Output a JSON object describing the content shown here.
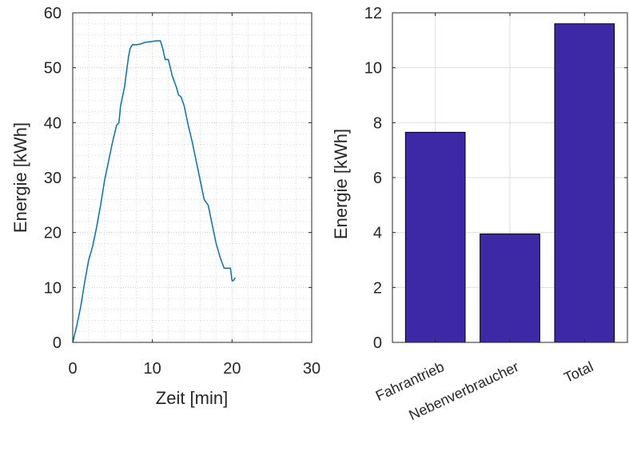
{
  "chart_data": [
    {
      "type": "line",
      "title": "",
      "xlabel": "Zeit [min]",
      "ylabel": "Energie [kWh]",
      "xlim": [
        0,
        30
      ],
      "ylim": [
        0,
        60
      ],
      "xticks": [
        "0",
        "10",
        "20",
        "30"
      ],
      "yticks": [
        "0",
        "10",
        "20",
        "30",
        "40",
        "50",
        "60"
      ],
      "grid": "major and minor (dotted)",
      "line_color": "#0072BD",
      "series": [
        {
          "x": [
            0,
            0.5,
            1.0,
            1.5,
            2.0,
            2.5,
            3.0,
            3.5,
            4.0,
            4.5,
            5.0,
            5.5,
            5.8,
            6.0,
            6.5,
            7.0,
            7.2,
            7.5,
            8.0,
            8.5,
            9.0,
            9.5,
            10.0,
            10.5,
            11.0,
            11.3,
            11.6,
            12.0,
            12.5,
            13.0,
            13.3,
            13.6,
            14.0,
            14.5,
            15.0,
            15.5,
            16.0,
            16.5,
            17.0,
            17.5,
            18.0,
            18.5,
            19.0,
            19.5,
            19.8,
            20.0,
            20.2,
            20.4
          ],
          "y": [
            0,
            3,
            6.5,
            11,
            15,
            17.5,
            21,
            25,
            29.5,
            33,
            36.5,
            39.5,
            40.0,
            43,
            46.5,
            52,
            53.5,
            54.2,
            54.2,
            54.3,
            54.6,
            54.7,
            54.8,
            54.9,
            54.9,
            53.5,
            51.5,
            51.5,
            48.5,
            46.5,
            45.0,
            44.7,
            43.0,
            39.5,
            36.5,
            33.0,
            29.5,
            26.0,
            25.0,
            21.5,
            18.0,
            15.5,
            13.5,
            13.5,
            13.5,
            11.2,
            11.3,
            11.8
          ]
        }
      ]
    },
    {
      "type": "bar",
      "title": "",
      "xlabel": "",
      "ylabel": "Energie [kWh]",
      "ylim": [
        0,
        12
      ],
      "yticks": [
        "0",
        "2",
        "4",
        "6",
        "8",
        "10",
        "12"
      ],
      "grid": "major",
      "bar_color": "#3D29A6",
      "categories": [
        "Fahrantrieb",
        "Nebenverbraucher",
        "Total"
      ],
      "values": [
        7.65,
        3.95,
        11.6
      ]
    }
  ]
}
